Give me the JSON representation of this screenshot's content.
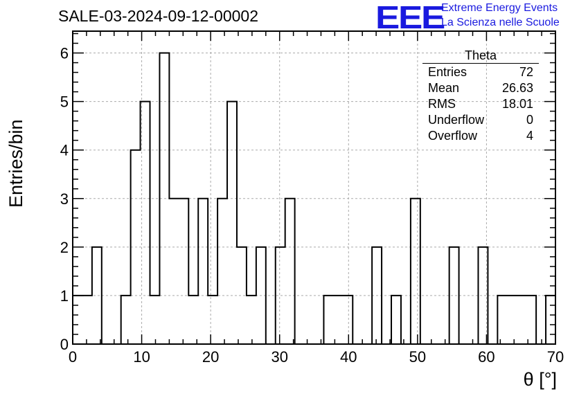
{
  "title": "SALE-03-2024-09-12-00002",
  "logo": {
    "mark": "EEE",
    "line1": "Extreme Energy Events",
    "line2": "La Scienza nelle Scuole",
    "color": "#1a1adf"
  },
  "stats": {
    "title": "Theta",
    "rows": [
      {
        "label": "Entries",
        "value": "72"
      },
      {
        "label": "Mean",
        "value": "26.63"
      },
      {
        "label": "RMS",
        "value": "18.01"
      },
      {
        "label": "Underflow",
        "value": "0"
      },
      {
        "label": "Overflow",
        "value": "4"
      }
    ]
  },
  "chart_data": {
    "type": "histogram",
    "xlabel": "θ [°]",
    "ylabel": "Entries/bin",
    "xlim": [
      0,
      70
    ],
    "ylim": [
      0,
      6.45
    ],
    "bin_width": 1.4,
    "bin_contents": [
      1,
      1,
      2,
      0,
      0,
      1,
      4,
      5,
      1,
      6,
      3,
      3,
      1,
      3,
      1,
      3,
      5,
      2,
      1,
      2,
      0,
      2,
      3,
      0,
      0,
      0,
      1,
      1,
      1,
      0,
      0,
      2,
      0,
      1,
      0,
      3,
      0,
      0,
      0,
      2,
      0,
      0,
      2,
      0,
      1,
      1,
      1,
      1,
      0,
      1
    ],
    "x_ticks": [
      0,
      10,
      20,
      30,
      40,
      50,
      60,
      70
    ],
    "y_ticks": [
      0,
      1,
      2,
      3,
      4,
      5,
      6
    ],
    "grid": true,
    "line_color": "#000000"
  }
}
